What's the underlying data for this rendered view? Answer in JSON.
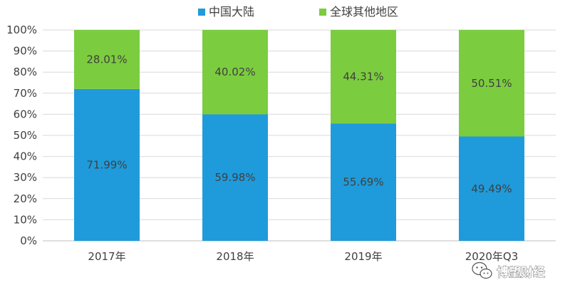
{
  "chart_data": {
    "type": "bar",
    "stacked": true,
    "categories": [
      "2017年",
      "2018年",
      "2019年",
      "2020年Q3"
    ],
    "series": [
      {
        "name": "中国大陆",
        "values": [
          71.99,
          59.98,
          55.69,
          49.49
        ],
        "labels": [
          "71.99%",
          "59.98%",
          "55.69%",
          "49.49%"
        ],
        "color": "#1f9bdb"
      },
      {
        "name": "全球其他地区",
        "values": [
          28.01,
          40.02,
          44.31,
          50.51
        ],
        "labels": [
          "28.01%",
          "40.02%",
          "44.31%",
          "50.51%"
        ],
        "color": "#7ccc3f"
      }
    ],
    "ylim": [
      0,
      100
    ],
    "yticks": [
      "0%",
      "10%",
      "20%",
      "30%",
      "40%",
      "50%",
      "60%",
      "70%",
      "80%",
      "90%",
      "100%"
    ],
    "grid": true,
    "legend_position": "top"
  },
  "watermark": {
    "text": "博望财经",
    "icon": "wechat-icon"
  }
}
